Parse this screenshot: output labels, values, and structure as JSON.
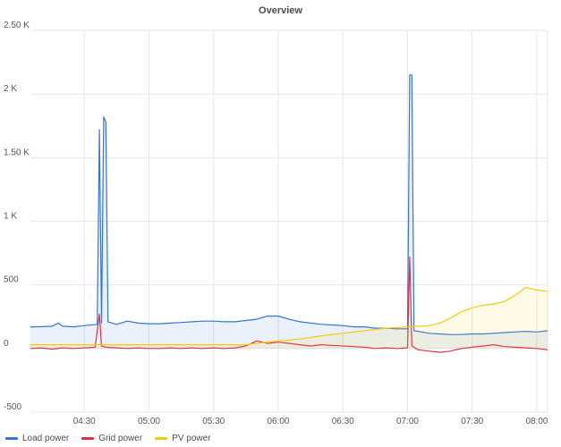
{
  "chart_data": {
    "type": "line",
    "title": "Overview",
    "xlabel": "",
    "ylabel": "",
    "x_range_minutes": [
      "04:05",
      "08:05"
    ],
    "ylim": [
      -500,
      2500
    ],
    "y_ticks": [
      {
        "value": 2500,
        "label": "2.50 K"
      },
      {
        "value": 2000,
        "label": "2 K"
      },
      {
        "value": 1500,
        "label": "1.50 K"
      },
      {
        "value": 1000,
        "label": "1 K"
      },
      {
        "value": 500,
        "label": "500"
      },
      {
        "value": 0,
        "label": "0"
      },
      {
        "value": -500,
        "label": "-500"
      }
    ],
    "x_ticks": [
      "04:30",
      "05:00",
      "05:30",
      "06:00",
      "06:30",
      "07:00",
      "07:30",
      "08:00"
    ],
    "grid": true,
    "legend_position": "bottom-left",
    "series": [
      {
        "name": "Load power",
        "color": "#3274d9",
        "fill": "rgba(50,116,217,0.10)",
        "points": [
          [
            "04:05",
            170
          ],
          [
            "04:10",
            172
          ],
          [
            "04:15",
            175
          ],
          [
            "04:18",
            200
          ],
          [
            "04:20",
            175
          ],
          [
            "04:25",
            170
          ],
          [
            "04:30",
            180
          ],
          [
            "04:36",
            190
          ],
          [
            "04:37",
            1720
          ],
          [
            "04:38",
            200
          ],
          [
            "04:39",
            1820
          ],
          [
            "04:40",
            1780
          ],
          [
            "04:41",
            210
          ],
          [
            "04:45",
            190
          ],
          [
            "04:50",
            215
          ],
          [
            "04:55",
            200
          ],
          [
            "05:00",
            195
          ],
          [
            "05:05",
            195
          ],
          [
            "05:10",
            200
          ],
          [
            "05:15",
            205
          ],
          [
            "05:20",
            210
          ],
          [
            "05:25",
            215
          ],
          [
            "05:30",
            215
          ],
          [
            "05:35",
            210
          ],
          [
            "05:40",
            210
          ],
          [
            "05:45",
            220
          ],
          [
            "05:50",
            230
          ],
          [
            "05:55",
            255
          ],
          [
            "06:00",
            255
          ],
          [
            "06:05",
            230
          ],
          [
            "06:10",
            210
          ],
          [
            "06:15",
            200
          ],
          [
            "06:20",
            190
          ],
          [
            "06:25",
            185
          ],
          [
            "06:30",
            180
          ],
          [
            "06:35",
            170
          ],
          [
            "06:40",
            170
          ],
          [
            "06:45",
            160
          ],
          [
            "06:50",
            160
          ],
          [
            "06:55",
            155
          ],
          [
            "07:00",
            155
          ],
          [
            "07:01",
            2150
          ],
          [
            "07:02",
            2150
          ],
          [
            "07:03",
            140
          ],
          [
            "07:05",
            135
          ],
          [
            "07:10",
            120
          ],
          [
            "07:15",
            115
          ],
          [
            "07:20",
            110
          ],
          [
            "07:25",
            110
          ],
          [
            "07:30",
            115
          ],
          [
            "07:35",
            115
          ],
          [
            "07:40",
            120
          ],
          [
            "07:45",
            125
          ],
          [
            "07:50",
            130
          ],
          [
            "07:55",
            135
          ],
          [
            "08:00",
            130
          ],
          [
            "08:05",
            140
          ]
        ]
      },
      {
        "name": "Grid power",
        "color": "#e02f44",
        "fill": "none",
        "points": [
          [
            "04:05",
            0
          ],
          [
            "04:10",
            5
          ],
          [
            "04:15",
            -5
          ],
          [
            "04:20",
            5
          ],
          [
            "04:25",
            0
          ],
          [
            "04:30",
            5
          ],
          [
            "04:35",
            10
          ],
          [
            "04:37",
            270
          ],
          [
            "04:38",
            20
          ],
          [
            "04:40",
            10
          ],
          [
            "04:45",
            5
          ],
          [
            "04:50",
            0
          ],
          [
            "04:55",
            5
          ],
          [
            "05:00",
            0
          ],
          [
            "05:05",
            0
          ],
          [
            "05:10",
            5
          ],
          [
            "05:15",
            0
          ],
          [
            "05:20",
            5
          ],
          [
            "05:25",
            0
          ],
          [
            "05:30",
            5
          ],
          [
            "05:35",
            0
          ],
          [
            "05:40",
            5
          ],
          [
            "05:45",
            20
          ],
          [
            "05:50",
            60
          ],
          [
            "05:55",
            40
          ],
          [
            "06:00",
            50
          ],
          [
            "06:05",
            40
          ],
          [
            "06:10",
            30
          ],
          [
            "06:15",
            20
          ],
          [
            "06:20",
            30
          ],
          [
            "06:25",
            25
          ],
          [
            "06:30",
            20
          ],
          [
            "06:35",
            15
          ],
          [
            "06:40",
            10
          ],
          [
            "06:45",
            0
          ],
          [
            "06:50",
            5
          ],
          [
            "06:55",
            0
          ],
          [
            "07:00",
            5
          ],
          [
            "07:01",
            720
          ],
          [
            "07:02",
            20
          ],
          [
            "07:05",
            -10
          ],
          [
            "07:10",
            -20
          ],
          [
            "07:15",
            -30
          ],
          [
            "07:20",
            -20
          ],
          [
            "07:25",
            0
          ],
          [
            "07:30",
            10
          ],
          [
            "07:35",
            20
          ],
          [
            "07:40",
            30
          ],
          [
            "07:45",
            15
          ],
          [
            "07:50",
            10
          ],
          [
            "07:55",
            5
          ],
          [
            "08:00",
            0
          ],
          [
            "08:05",
            -10
          ]
        ]
      },
      {
        "name": "PV power",
        "color": "#f2cc0c",
        "fill": "rgba(242,204,12,0.10)",
        "points": [
          [
            "04:05",
            30
          ],
          [
            "04:30",
            30
          ],
          [
            "05:00",
            30
          ],
          [
            "05:30",
            30
          ],
          [
            "05:45",
            30
          ],
          [
            "05:55",
            50
          ],
          [
            "06:00",
            60
          ],
          [
            "06:10",
            75
          ],
          [
            "06:20",
            100
          ],
          [
            "06:30",
            120
          ],
          [
            "06:40",
            140
          ],
          [
            "06:50",
            160
          ],
          [
            "07:00",
            170
          ],
          [
            "07:10",
            180
          ],
          [
            "07:15",
            200
          ],
          [
            "07:20",
            240
          ],
          [
            "07:25",
            290
          ],
          [
            "07:30",
            320
          ],
          [
            "07:35",
            340
          ],
          [
            "07:40",
            350
          ],
          [
            "07:45",
            370
          ],
          [
            "07:50",
            420
          ],
          [
            "07:55",
            480
          ],
          [
            "08:00",
            460
          ],
          [
            "08:05",
            450
          ]
        ]
      }
    ]
  }
}
